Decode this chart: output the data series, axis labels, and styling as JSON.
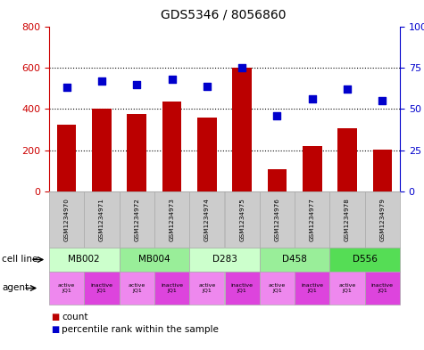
{
  "title": "GDS5346 / 8056860",
  "samples": [
    "GSM1234970",
    "GSM1234971",
    "GSM1234972",
    "GSM1234973",
    "GSM1234974",
    "GSM1234975",
    "GSM1234976",
    "GSM1234977",
    "GSM1234978",
    "GSM1234979"
  ],
  "counts": [
    325,
    400,
    375,
    435,
    360,
    600,
    110,
    220,
    305,
    205
  ],
  "percentiles": [
    63,
    67,
    65,
    68,
    64,
    75,
    46,
    56,
    62,
    55
  ],
  "ylim_left": [
    0,
    800
  ],
  "ylim_right": [
    0,
    100
  ],
  "yticks_left": [
    0,
    200,
    400,
    600,
    800
  ],
  "yticks_right": [
    0,
    25,
    50,
    75,
    100
  ],
  "cell_lines": [
    {
      "label": "MB002",
      "span": [
        0,
        2
      ],
      "color": "#ccffcc"
    },
    {
      "label": "MB004",
      "span": [
        2,
        4
      ],
      "color": "#99ee99"
    },
    {
      "label": "D283",
      "span": [
        4,
        6
      ],
      "color": "#ccffcc"
    },
    {
      "label": "D458",
      "span": [
        6,
        8
      ],
      "color": "#99ee99"
    },
    {
      "label": "D556",
      "span": [
        8,
        10
      ],
      "color": "#55dd55"
    }
  ],
  "agents": [
    {
      "label": "active\nJQ1",
      "color": "#ee88ee"
    },
    {
      "label": "inactive\nJQ1",
      "color": "#dd44dd"
    },
    {
      "label": "active\nJQ1",
      "color": "#ee88ee"
    },
    {
      "label": "inactive\nJQ1",
      "color": "#dd44dd"
    },
    {
      "label": "active\nJQ1",
      "color": "#ee88ee"
    },
    {
      "label": "inactive\nJQ1",
      "color": "#dd44dd"
    },
    {
      "label": "active\nJQ1",
      "color": "#ee88ee"
    },
    {
      "label": "inactive\nJQ1",
      "color": "#dd44dd"
    },
    {
      "label": "active\nJQ1",
      "color": "#ee88ee"
    },
    {
      "label": "inactive\nJQ1",
      "color": "#dd44dd"
    }
  ],
  "bar_color": "#bb0000",
  "dot_color": "#0000cc",
  "bg_color": "#ffffff",
  "left_axis_color": "#cc0000",
  "right_axis_color": "#0000cc",
  "sample_box_color": "#cccccc",
  "grid_yticks": [
    200,
    400,
    600
  ]
}
